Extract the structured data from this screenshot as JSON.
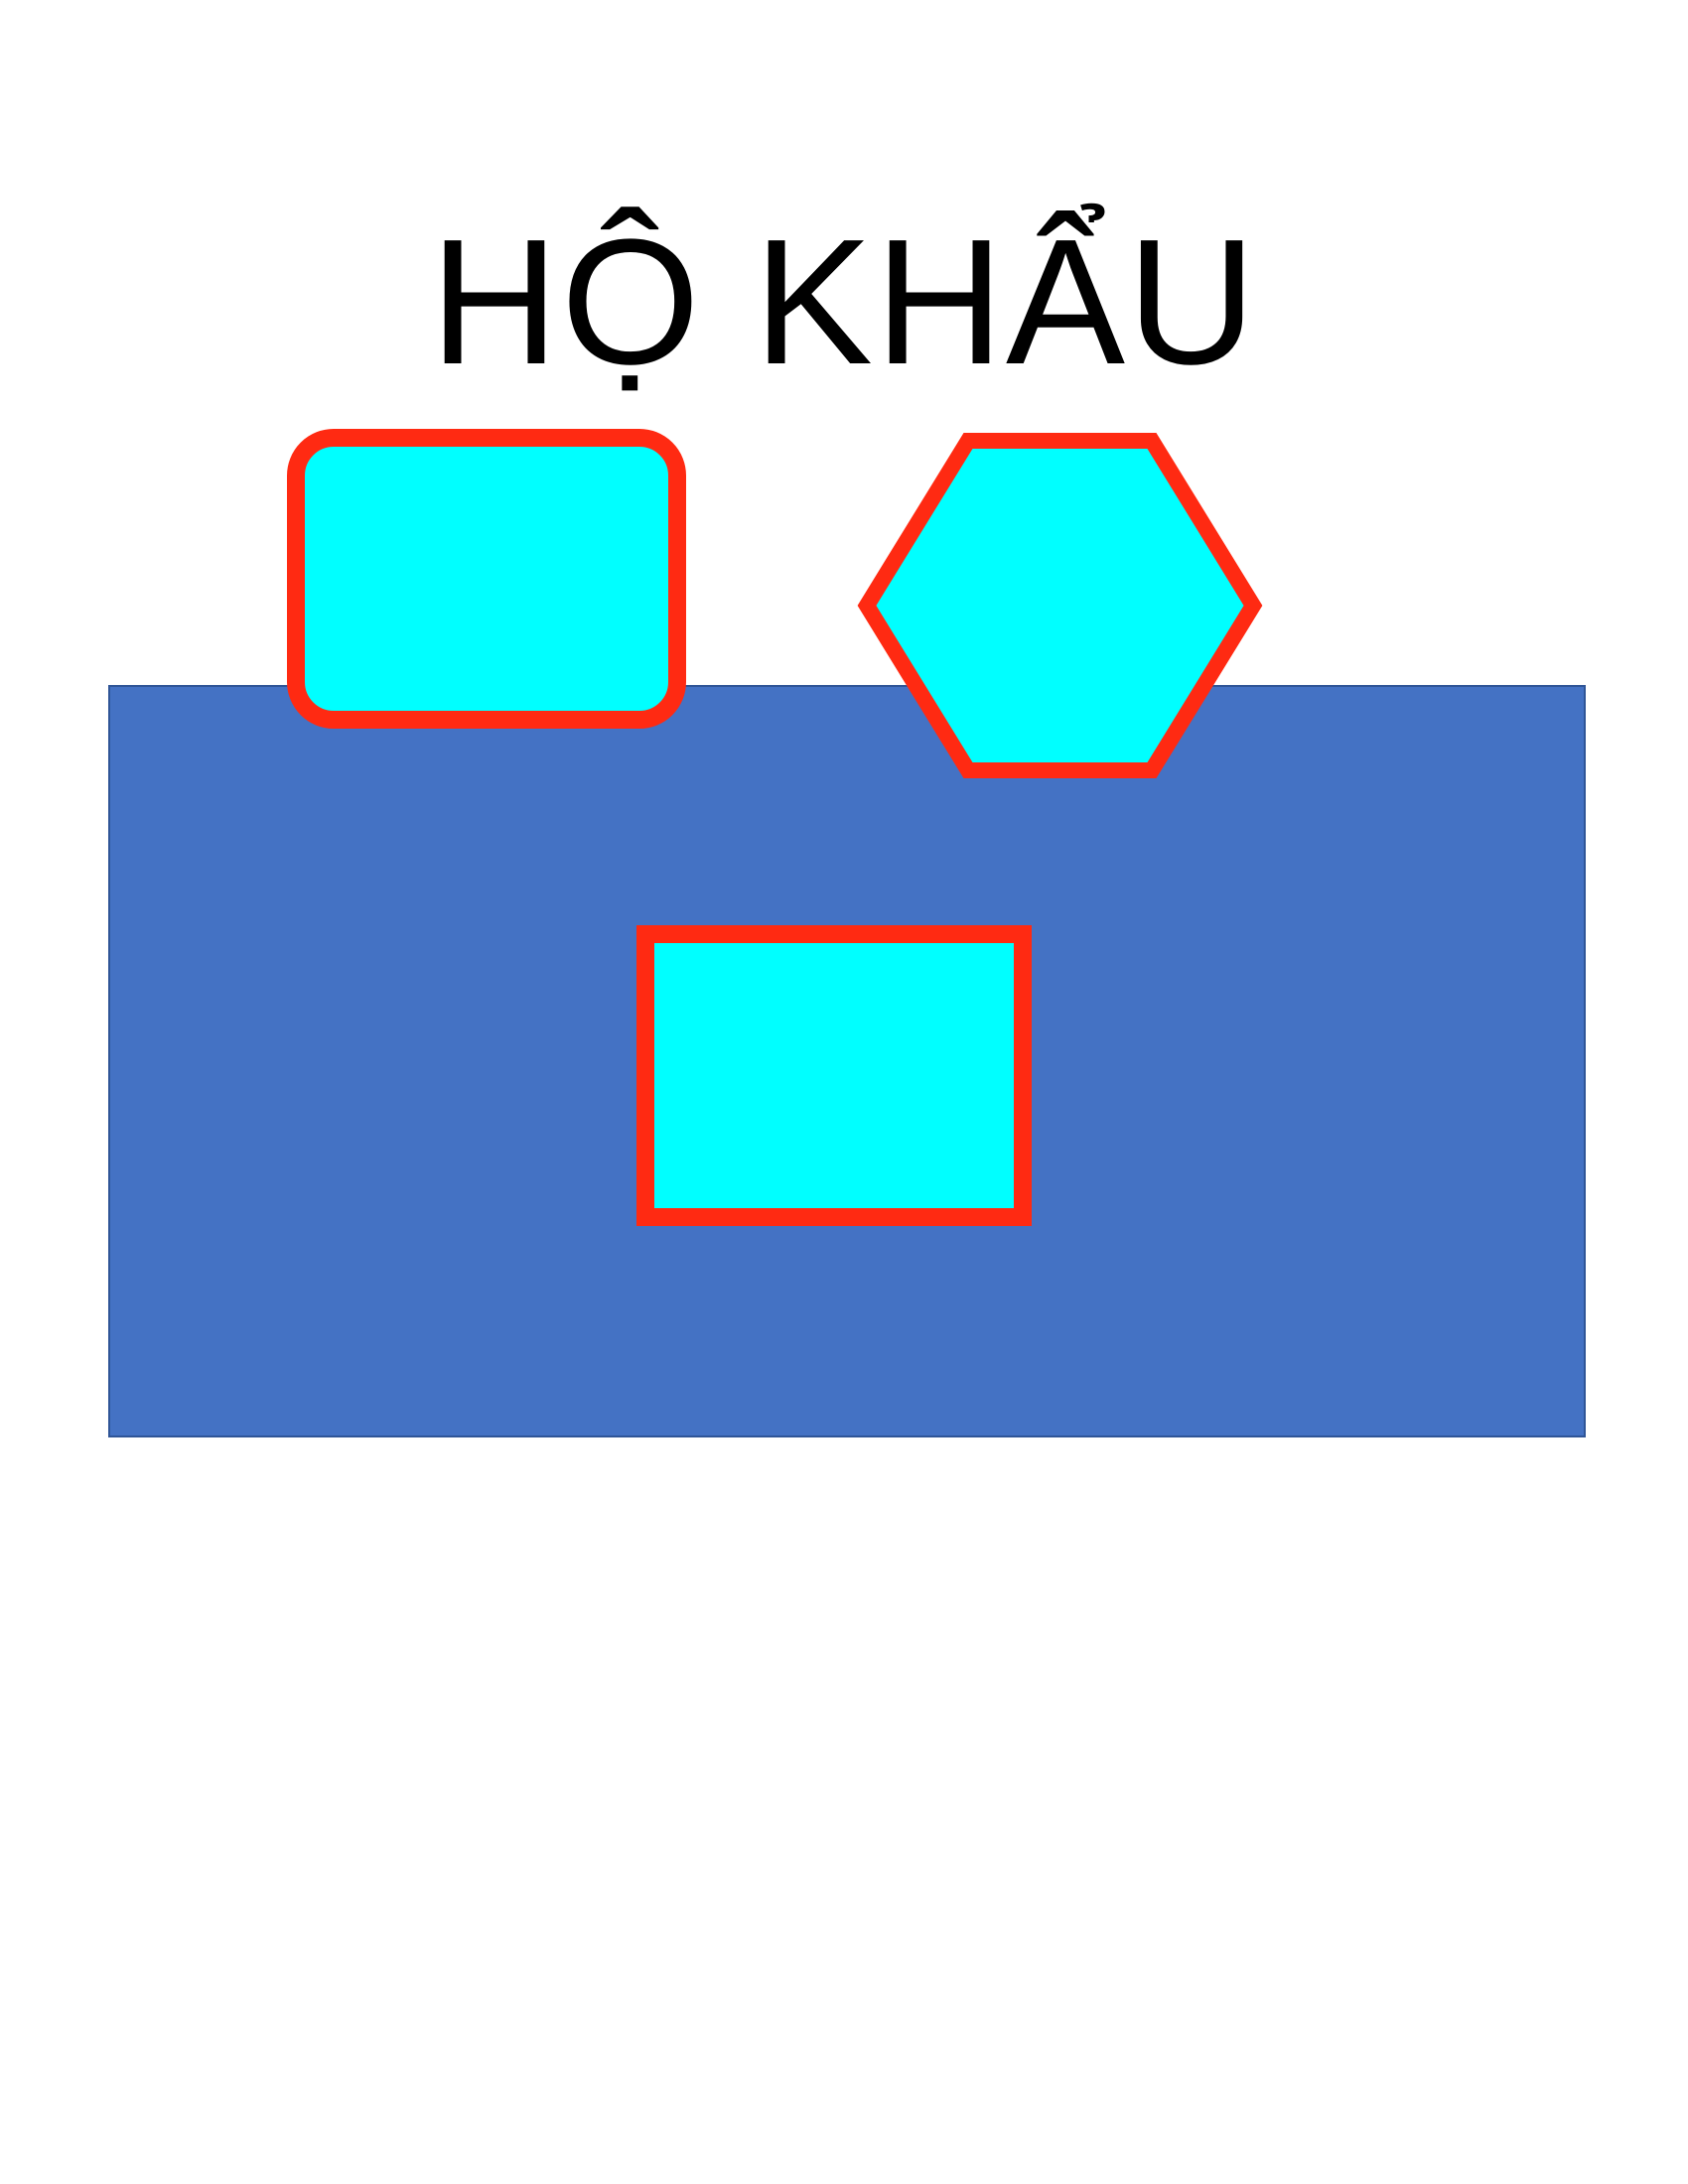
{
  "title": "HỘ KHẨU",
  "colors": {
    "base_fill": "#4472C4",
    "base_stroke": "#2F5597",
    "shape_fill": "#00FFFF",
    "shape_stroke": "#FF2A12",
    "title_color": "#000000"
  },
  "shapes": {
    "base": "rectangle",
    "top_left": "rounded-rectangle",
    "top_right": "hexagon",
    "center": "rectangle"
  }
}
